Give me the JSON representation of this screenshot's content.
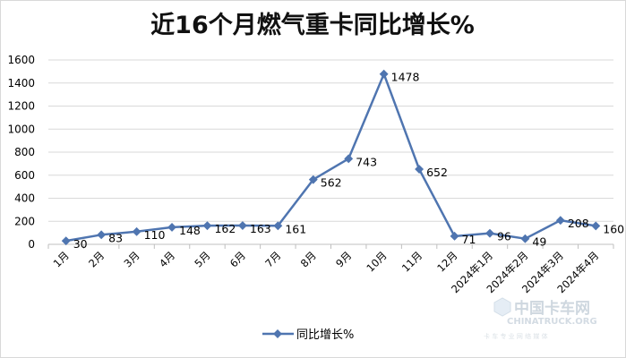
{
  "chart_data": {
    "type": "line",
    "title": "近16个月燃气重卡同比增长%",
    "categories": [
      "1月",
      "2月",
      "3月",
      "4月",
      "5月",
      "6月",
      "7月",
      "8月",
      "9月",
      "10月",
      "11月",
      "12月",
      "2024年1月",
      "2024年2月",
      "2024年3月",
      "2024年4月"
    ],
    "series": [
      {
        "name": "同比增长%",
        "values": [
          30,
          83,
          110,
          148,
          162,
          163,
          161,
          562,
          743,
          1478,
          652,
          71,
          96,
          49,
          208,
          160
        ],
        "color": "#4f75b0"
      }
    ],
    "ylim": [
      0,
      1600
    ],
    "yticks": [
      0,
      200,
      400,
      600,
      800,
      1000,
      1200,
      1400,
      1600
    ],
    "grid": true,
    "legend_position": "bottom",
    "xlabel": "",
    "ylabel": ""
  },
  "watermark": {
    "brand_cn": "中国卡车网",
    "brand_en": "CHINATRUCK.ORG",
    "slogan": "卡 车 专 业 网 络 媒 体"
  }
}
